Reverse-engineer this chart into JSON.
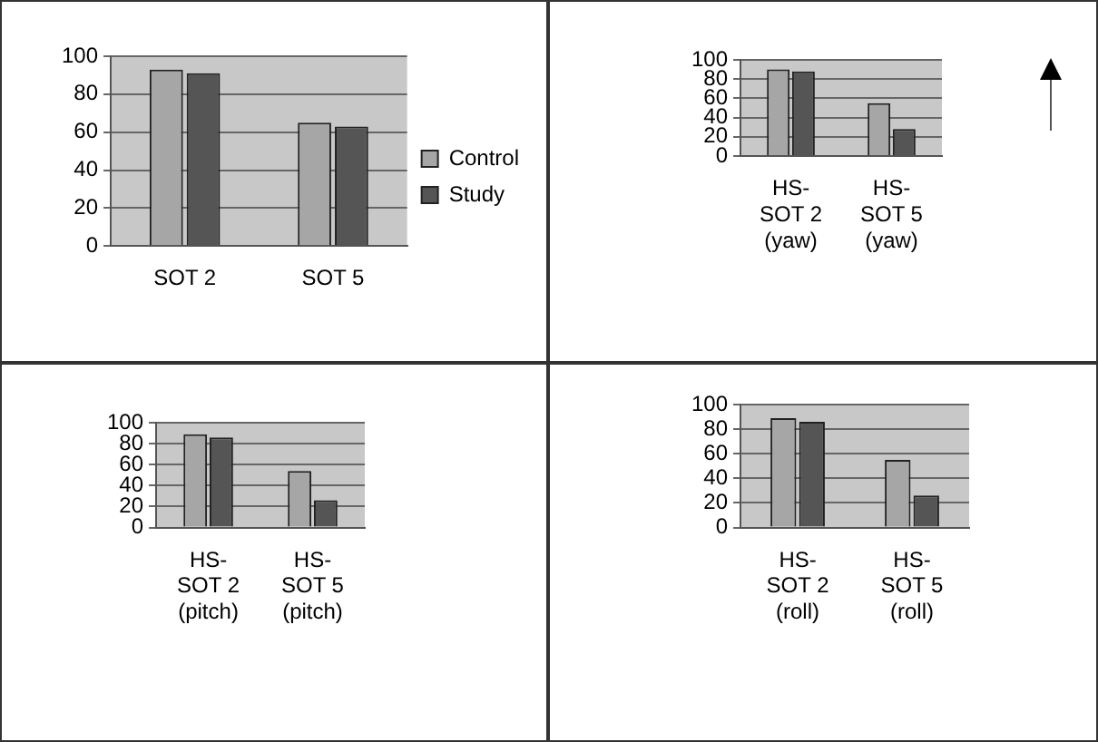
{
  "chart_data": [
    {
      "type": "bar",
      "categories": [
        "SOT 2",
        "SOT 5"
      ],
      "series": [
        {
          "name": "Control",
          "color": "#a6a6a6",
          "values": [
            93,
            65
          ]
        },
        {
          "name": "Study",
          "color": "#555555",
          "values": [
            91,
            63
          ]
        }
      ],
      "ylim": [
        0,
        100
      ],
      "yticks": [
        0,
        20,
        40,
        60,
        80,
        100
      ],
      "grid": "y",
      "legend": "right"
    },
    {
      "type": "bar",
      "categories": [
        "HS-SOT 2 (yaw)",
        "HS-SOT 5 (yaw)"
      ],
      "series": [
        {
          "color": "#a6a6a6",
          "values": [
            90,
            55
          ]
        },
        {
          "color": "#555555",
          "values": [
            88,
            28
          ]
        }
      ],
      "ylim": [
        0,
        100
      ],
      "yticks": [
        0,
        20,
        40,
        60,
        80,
        100
      ],
      "grid": "y",
      "legend": false
    },
    {
      "type": "bar",
      "categories": [
        "HS-SOT 2 (pitch)",
        "HS-SOT 5 (pitch)"
      ],
      "series": [
        {
          "color": "#a6a6a6",
          "values": [
            89,
            54
          ]
        },
        {
          "color": "#555555",
          "values": [
            86,
            26
          ]
        }
      ],
      "ylim": [
        0,
        100
      ],
      "yticks": [
        0,
        20,
        40,
        60,
        80,
        100
      ],
      "grid": "y",
      "legend": false
    },
    {
      "type": "bar",
      "categories": [
        "HS-SOT 2 (roll)",
        "HS-SOT 5 (roll)"
      ],
      "series": [
        {
          "color": "#a6a6a6",
          "values": [
            89,
            55
          ]
        },
        {
          "color": "#555555",
          "values": [
            86,
            26
          ]
        }
      ],
      "ylim": [
        0,
        100
      ],
      "yticks": [
        0,
        20,
        40,
        60,
        80,
        100
      ],
      "grid": "y",
      "legend": false
    }
  ]
}
